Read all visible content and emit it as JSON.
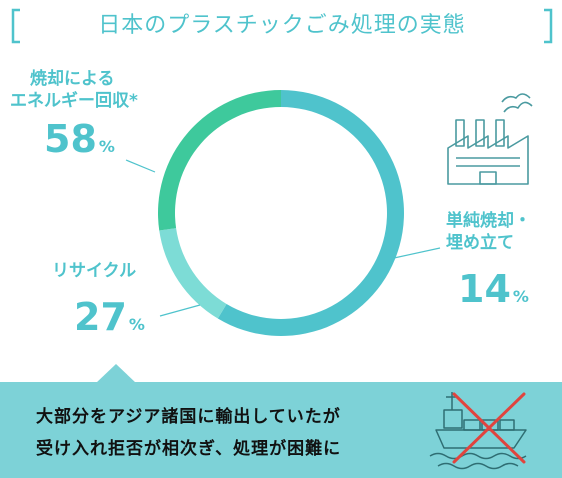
{
  "title": "日本のプラスチックごみ処理の実態",
  "chart_data": {
    "type": "pie",
    "style": "donut",
    "title": "日本のプラスチックごみ処理の実態",
    "slices": [
      {
        "name": "焼却によるエネルギー回収*",
        "name_lines": [
          "焼却による",
          "エネルギー回収*"
        ],
        "value": 58,
        "color": "#4fc3cc"
      },
      {
        "name": "単純焼却・埋め立て",
        "name_lines": [
          "単純焼却・",
          "埋め立て"
        ],
        "value": 14,
        "color": "#7ddcd6"
      },
      {
        "name": "リサイクル",
        "name_lines": [
          "リサイクル"
        ],
        "value": 27,
        "color": "#3ec99c"
      }
    ],
    "unit": "%"
  },
  "labels": {
    "energy": {
      "line1": "焼却による",
      "line2": "エネルギー回収*",
      "value": "58",
      "unit": "%"
    },
    "landfill": {
      "line1": "単純焼却・",
      "line2": "埋め立て",
      "value": "14",
      "unit": "%"
    },
    "recycle": {
      "line1": "リサイクル",
      "value": "27",
      "unit": "%"
    }
  },
  "banner": {
    "line1": "大部分をアジア諸国に輸出していたが",
    "line2": "受け入れ拒否が相次ぎ、処理が困難に"
  },
  "colors": {
    "accent": "#4fc3cc",
    "banner_bg": "#7dd2d7",
    "cross": "#e0443e",
    "icon_stroke": "#4a9aa0"
  },
  "icons": {
    "factory": "factory-icon",
    "ship": "cargo-ship-icon",
    "cross": "cross-icon"
  }
}
